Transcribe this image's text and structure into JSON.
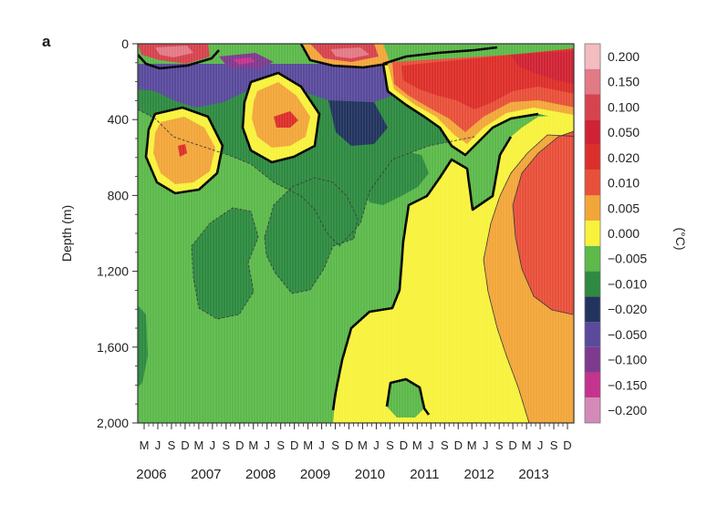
{
  "panel_label": "a",
  "colors": {
    "frame": "#333333",
    "contour_zero": "#000000",
    "contour_dash": "#3a3a3a"
  },
  "chart_data": {
    "type": "heatmap",
    "title": "",
    "xlabel": "",
    "ylabel": "Depth (m)",
    "ylim": [
      2000,
      0
    ],
    "y_ticks": [
      0,
      400,
      800,
      1200,
      1600,
      2000
    ],
    "y_tick_labels": [
      "0",
      "400",
      "800",
      "1,200",
      "1,600",
      "2,000"
    ],
    "x_range": [
      "2006-03",
      "2013-12"
    ],
    "x_month_labels": [
      "M",
      "J",
      "S",
      "D",
      "M",
      "J",
      "S",
      "D",
      "M",
      "J",
      "S",
      "D",
      "M",
      "J",
      "S",
      "D",
      "M",
      "J",
      "S",
      "D",
      "M",
      "J",
      "S",
      "D",
      "M",
      "J",
      "S",
      "D",
      "M",
      "J",
      "S",
      "D"
    ],
    "x_year_labels": [
      "2006",
      "2007",
      "2008",
      "2009",
      "2010",
      "2011",
      "2012",
      "2013"
    ],
    "colorbar": {
      "label": "(°C)",
      "levels": [
        "0.200",
        "0.150",
        "0.100",
        "0.050",
        "0.020",
        "0.010",
        "0.005",
        "0.000",
        "−0.005",
        "−0.010",
        "−0.020",
        "−0.050",
        "−0.100",
        "−0.150",
        "−0.200"
      ],
      "colors": [
        "#f2bcc0",
        "#e27a85",
        "#d6434e",
        "#cf2334",
        "#dd2f2a",
        "#e8503a",
        "#f2a63a",
        "#f7f23c",
        "#5cb94a",
        "#2e8a40",
        "#22345e",
        "#5a4a9c",
        "#7e3a8e",
        "#c4338d",
        "#d48ab9"
      ]
    },
    "fields": [
      {
        "class": "-0.005",
        "region": "near-surface band 2006–2009 and mid-depth patches 2007–2010"
      },
      {
        "class": "-0.050",
        "region": "upper 300 m, 2006–2010"
      },
      {
        "class": "0.005",
        "region": "deep warming below 800 m from 2010, full-depth by 2013"
      },
      {
        "class": "0.010",
        "region": "eddies at 400–800 m in 2006 and 2008, deep ocean 2012–2013"
      },
      {
        "class": "0.020",
        "region": "upper ocean 2010–2013"
      },
      {
        "class": "0.050",
        "region": "near-surface 2009–2010 and 2012–2013"
      }
    ]
  }
}
